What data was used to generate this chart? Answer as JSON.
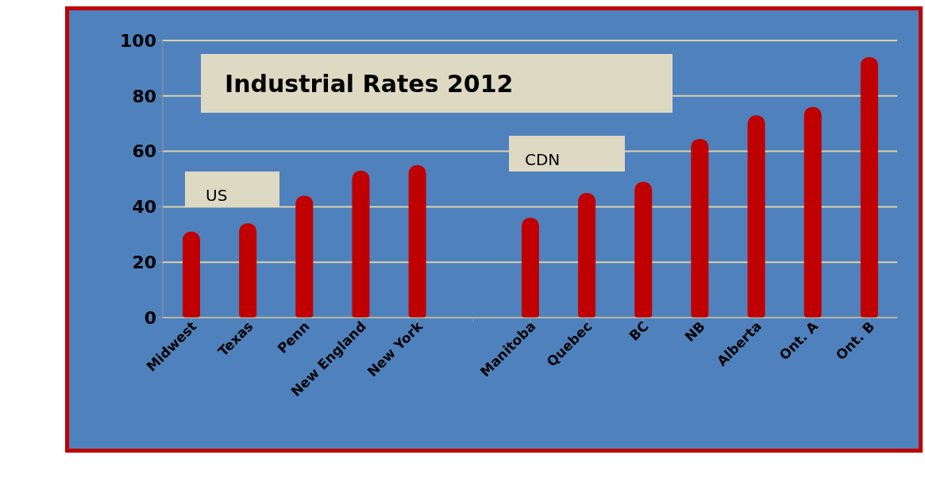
{
  "chart_data": {
    "type": "bar",
    "title": "Industrial Rates 2012",
    "categories": [
      "Midwest",
      "Texas",
      "Penn",
      "New England",
      "New York",
      null,
      "Manitoba",
      "Quebec",
      "BC",
      "NB",
      "Alberta",
      "Ont. A",
      "Ont. B"
    ],
    "values": [
      31,
      34,
      44,
      53,
      55,
      null,
      36,
      45,
      49,
      64.5,
      73,
      76,
      94
    ],
    "color": "#c00000",
    "annotations": [
      "US",
      "CDN"
    ],
    "ylim": [
      0,
      100
    ],
    "yticks": [
      0,
      20,
      40,
      60,
      80,
      100
    ],
    "grid": "y",
    "legend": false
  }
}
